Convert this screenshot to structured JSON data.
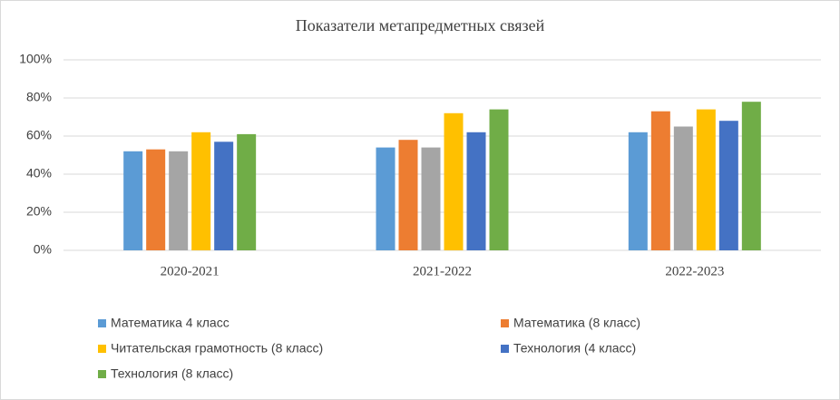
{
  "chart_data": {
    "type": "bar",
    "title": "Показатели метапредметных связей",
    "categories": [
      "2020-2021",
      "2021-2022",
      "2022-2023"
    ],
    "series": [
      {
        "name": "Математика 4 класс",
        "color": "#5b9bd5",
        "values": [
          52,
          54,
          62
        ]
      },
      {
        "name": "Математика  (8 класс)",
        "color": "#ed7d31",
        "values": [
          53,
          58,
          73
        ]
      },
      {
        "color": "#a5a5a5",
        "values": [
          52,
          54,
          65
        ]
      },
      {
        "name": "Читательская грамотность (8 класс)",
        "color": "#ffc000",
        "values": [
          62,
          72,
          74
        ]
      },
      {
        "name": "Технология (4 класс)",
        "color": "#4472c4",
        "values": [
          57,
          62,
          68
        ]
      },
      {
        "name": "Технология (8 класс)",
        "color": "#70ad47",
        "values": [
          61,
          74,
          78
        ]
      }
    ],
    "ylim": [
      0,
      100
    ],
    "yticks": [
      {
        "value": 0,
        "label": "0%"
      },
      {
        "value": 20,
        "label": "20%"
      },
      {
        "value": 40,
        "label": "40%"
      },
      {
        "value": 60,
        "label": "60%"
      },
      {
        "value": 80,
        "label": "80%"
      },
      {
        "value": 100,
        "label": "100%"
      }
    ],
    "grid": true
  }
}
